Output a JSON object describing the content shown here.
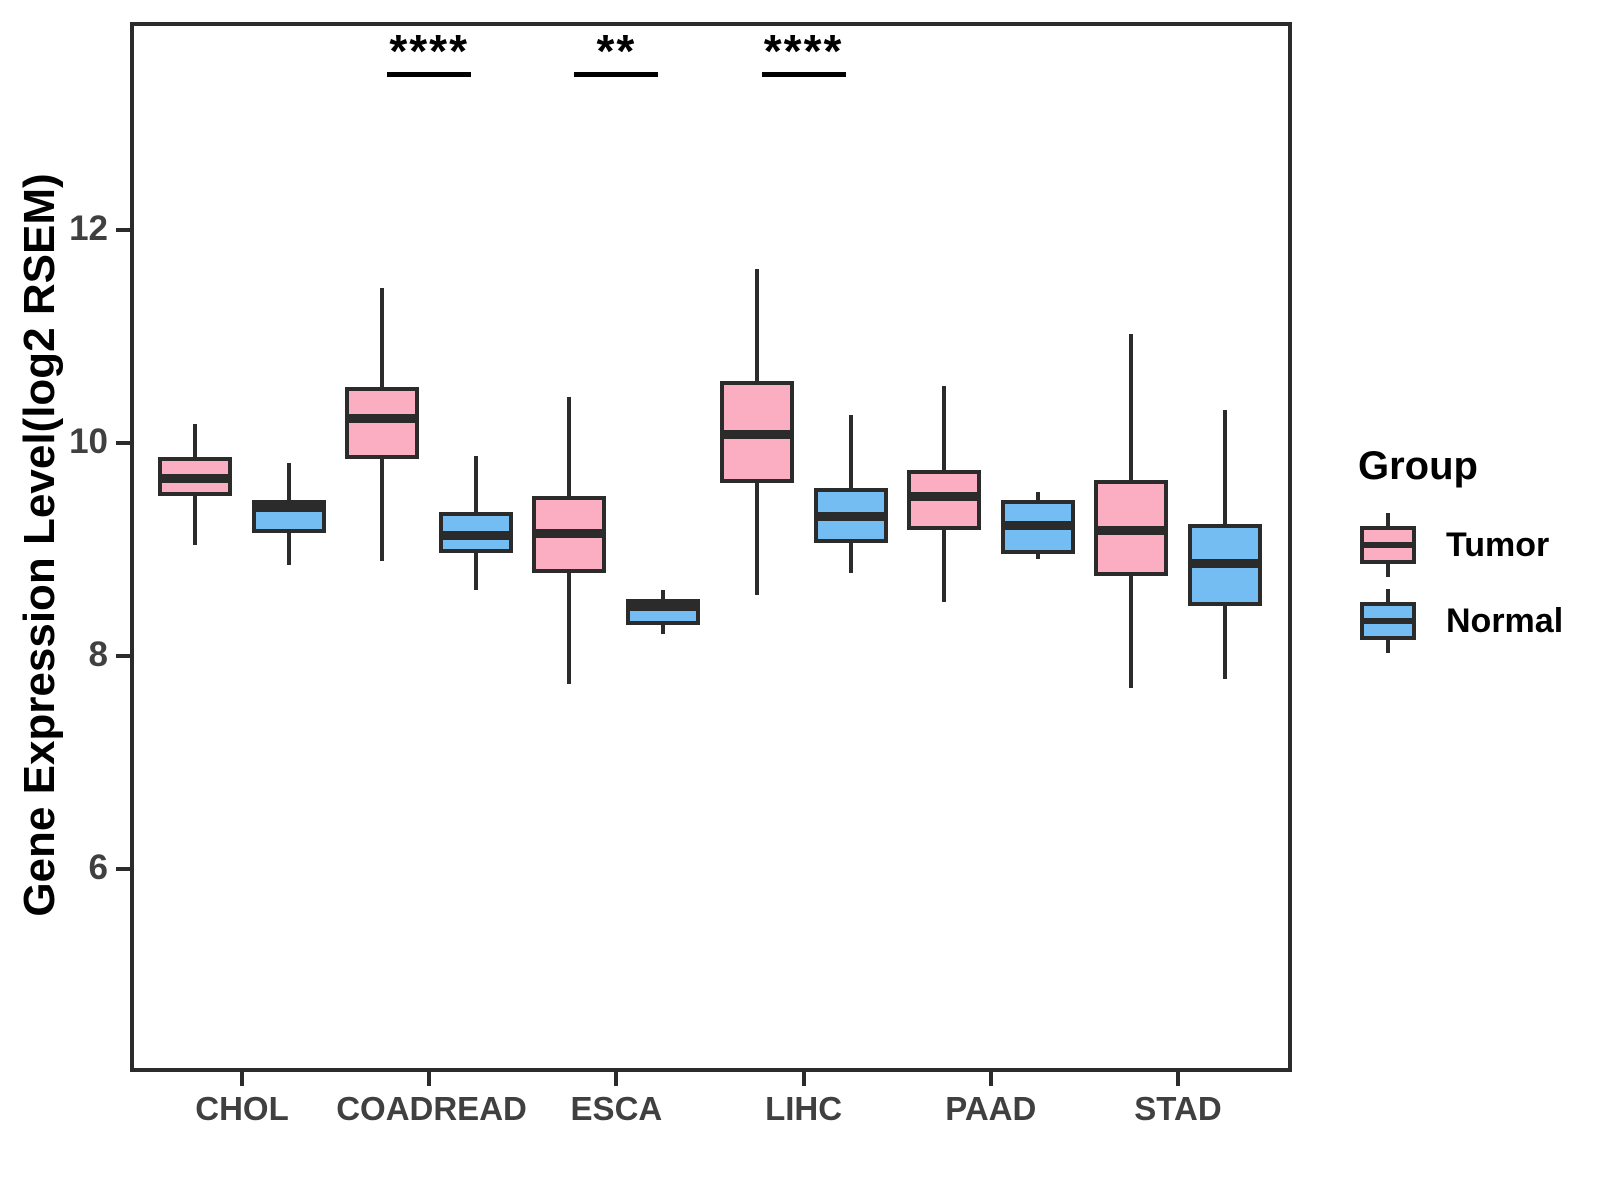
{
  "chart_data": {
    "type": "grouped_boxplot",
    "title": "",
    "xlabel": "",
    "ylabel": "Gene Expression Level(log2 RSEM)",
    "ylim": [
      4.1,
      13.95
    ],
    "yticks": [
      6,
      8,
      10,
      12
    ],
    "grid": false,
    "categories": [
      "CHOL",
      "COADREAD",
      "ESCA",
      "LIHC",
      "PAAD",
      "STAD"
    ],
    "series": [
      {
        "name": "Tumor",
        "color": "#FBAEC1",
        "boxes": [
          {
            "category": "CHOL",
            "whisker_low": 9.04,
            "q1": 9.5,
            "median": 9.67,
            "q3": 9.87,
            "whisker_high": 10.18
          },
          {
            "category": "COADREAD",
            "whisker_low": 8.89,
            "q1": 9.85,
            "median": 10.23,
            "q3": 10.53,
            "whisker_high": 11.45
          },
          {
            "category": "ESCA",
            "whisker_low": 7.74,
            "q1": 8.78,
            "median": 9.15,
            "q3": 9.5,
            "whisker_high": 10.43
          },
          {
            "category": "LIHC",
            "whisker_low": 8.57,
            "q1": 9.63,
            "median": 10.08,
            "q3": 10.58,
            "whisker_high": 11.63
          },
          {
            "category": "PAAD",
            "whisker_low": 8.51,
            "q1": 9.18,
            "median": 9.5,
            "q3": 9.75,
            "whisker_high": 10.54
          },
          {
            "category": "STAD",
            "whisker_low": 7.7,
            "q1": 8.75,
            "median": 9.18,
            "q3": 9.65,
            "whisker_high": 11.02
          }
        ]
      },
      {
        "name": "Normal",
        "color": "#74BDF2",
        "boxes": [
          {
            "category": "CHOL",
            "whisker_low": 8.86,
            "q1": 9.16,
            "median": 9.4,
            "q3": 9.47,
            "whisker_high": 9.81
          },
          {
            "category": "COADREAD",
            "whisker_low": 8.62,
            "q1": 8.97,
            "median": 9.13,
            "q3": 9.35,
            "whisker_high": 9.88
          },
          {
            "category": "ESCA",
            "whisker_low": 8.21,
            "q1": 8.29,
            "median": 8.47,
            "q3": 8.54,
            "whisker_high": 8.62
          },
          {
            "category": "LIHC",
            "whisker_low": 8.78,
            "q1": 9.06,
            "median": 9.31,
            "q3": 9.58,
            "whisker_high": 10.26
          },
          {
            "category": "PAAD",
            "whisker_low": 8.91,
            "q1": 8.96,
            "median": 9.23,
            "q3": 9.47,
            "whisker_high": 9.54
          },
          {
            "category": "STAD",
            "whisker_low": 7.79,
            "q1": 8.47,
            "median": 8.87,
            "q3": 9.24,
            "whisker_high": 10.31
          }
        ]
      }
    ],
    "annotations": [
      {
        "category": "COADREAD",
        "label": "****"
      },
      {
        "category": "ESCA",
        "label": "**"
      },
      {
        "category": "LIHC",
        "label": "****"
      }
    ],
    "legend": {
      "title": "Group",
      "position": "right",
      "entries": [
        {
          "label": "Tumor",
          "color": "#FBAEC1"
        },
        {
          "label": "Normal",
          "color": "#74BDF2"
        }
      ]
    },
    "colors": {
      "tumor_fill": "#FBAEC1",
      "normal_fill": "#74BDF2",
      "line": "#2b2b2b",
      "axis_text": "#404040",
      "annotation_text": "#000000"
    }
  }
}
